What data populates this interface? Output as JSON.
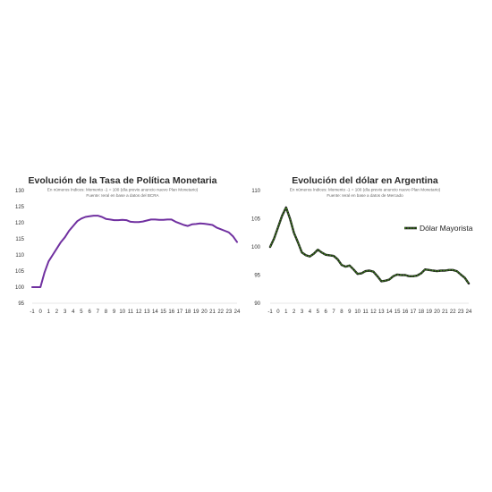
{
  "chart_data": [
    {
      "type": "line",
      "title": "Evolución de la Tasa de Política Monetaria",
      "subtitle": "En números índices: Momento -1 = 100 (día previo anuncio nuevo Plan Monetario)",
      "source": "Fuente: Ieral en base a datos del BCRA",
      "categories": [
        "-1",
        "0",
        "1",
        "2",
        "3",
        "4",
        "5",
        "6",
        "7",
        "8",
        "9",
        "10",
        "11",
        "12",
        "13",
        "14",
        "15",
        "16",
        "17",
        "18",
        "19",
        "20",
        "21",
        "22",
        "23",
        "24"
      ],
      "yticks": [
        "95",
        "100",
        "105",
        "110",
        "115",
        "120",
        "125",
        "130"
      ],
      "ylim": [
        95,
        130
      ],
      "series": [
        {
          "color": "#7030a0",
          "x": [
            -1,
            -0.3,
            0,
            0.5,
            1,
            1.5,
            2,
            2.5,
            3,
            3.5,
            4,
            4.5,
            5,
            5.5,
            6,
            6.5,
            7,
            7.5,
            8,
            8.5,
            9,
            9.5,
            10,
            10.5,
            11,
            11.5,
            12,
            12.5,
            13,
            13.5,
            14,
            14.5,
            15,
            15.5,
            16,
            16.5,
            17,
            17.5,
            18,
            18.5,
            19,
            19.5,
            20,
            20.5,
            21,
            21.5,
            22,
            22.5,
            23,
            23.5,
            24
          ],
          "values": [
            100,
            100,
            100,
            104.5,
            108,
            110,
            112,
            114,
            115.5,
            117.5,
            119,
            120.5,
            121.3,
            121.8,
            122,
            122.2,
            122.2,
            121.8,
            121.2,
            121,
            120.8,
            120.8,
            120.9,
            120.8,
            120.3,
            120.2,
            120.2,
            120.4,
            120.7,
            121,
            121,
            120.9,
            120.9,
            121,
            121,
            120.3,
            119.8,
            119.3,
            119,
            119.5,
            119.6,
            119.8,
            119.7,
            119.5,
            119.3,
            118.5,
            118,
            117.5,
            117,
            115.8,
            114
          ]
        }
      ]
    },
    {
      "type": "line",
      "title": "Evolución del dólar en Argentina",
      "subtitle": "En números índices: Momento -1 = 100 (día previo anuncio nuevo Plan Monetario)",
      "source": "Fuente: Ieral en base a datos de Mercado",
      "categories": [
        "-1",
        "0",
        "1",
        "2",
        "3",
        "4",
        "5",
        "6",
        "7",
        "8",
        "9",
        "10",
        "11",
        "12",
        "13",
        "14",
        "15",
        "16",
        "17",
        "18",
        "19",
        "20",
        "21",
        "22",
        "23",
        "24"
      ],
      "yticks": [
        "90",
        "95",
        "100",
        "105",
        "110"
      ],
      "ylim": [
        90,
        110
      ],
      "legend": "right",
      "series": [
        {
          "name": "Dólar Mayorista",
          "color": "#3d7a1e",
          "x": [
            -1,
            -0.5,
            0,
            0.5,
            1,
            1.5,
            2,
            2.5,
            3,
            3.5,
            4,
            4.5,
            5,
            5.5,
            6,
            6.5,
            7,
            7.5,
            8,
            8.5,
            9,
            9.5,
            10,
            10.5,
            11,
            11.5,
            12,
            12.5,
            13,
            13.5,
            14,
            14.5,
            15,
            15.5,
            16,
            16.5,
            17,
            17.5,
            18,
            18.5,
            19,
            19.5,
            20,
            20.5,
            21,
            21.5,
            22,
            22.5,
            23,
            23.5,
            24
          ],
          "values": [
            100,
            101.5,
            103.5,
            105.5,
            107,
            105,
            102.5,
            100.8,
            99,
            98.5,
            98.3,
            98.8,
            99.5,
            99,
            98.6,
            98.5,
            98.4,
            97.8,
            96.8,
            96.5,
            96.7,
            96,
            95.2,
            95.3,
            95.7,
            95.8,
            95.6,
            94.8,
            93.9,
            94,
            94.2,
            94.8,
            95.1,
            95,
            95,
            94.8,
            94.8,
            94.9,
            95.3,
            96,
            95.9,
            95.8,
            95.7,
            95.8,
            95.8,
            95.9,
            95.9,
            95.7,
            95.1,
            94.5,
            93.5
          ]
        }
      ]
    }
  ]
}
